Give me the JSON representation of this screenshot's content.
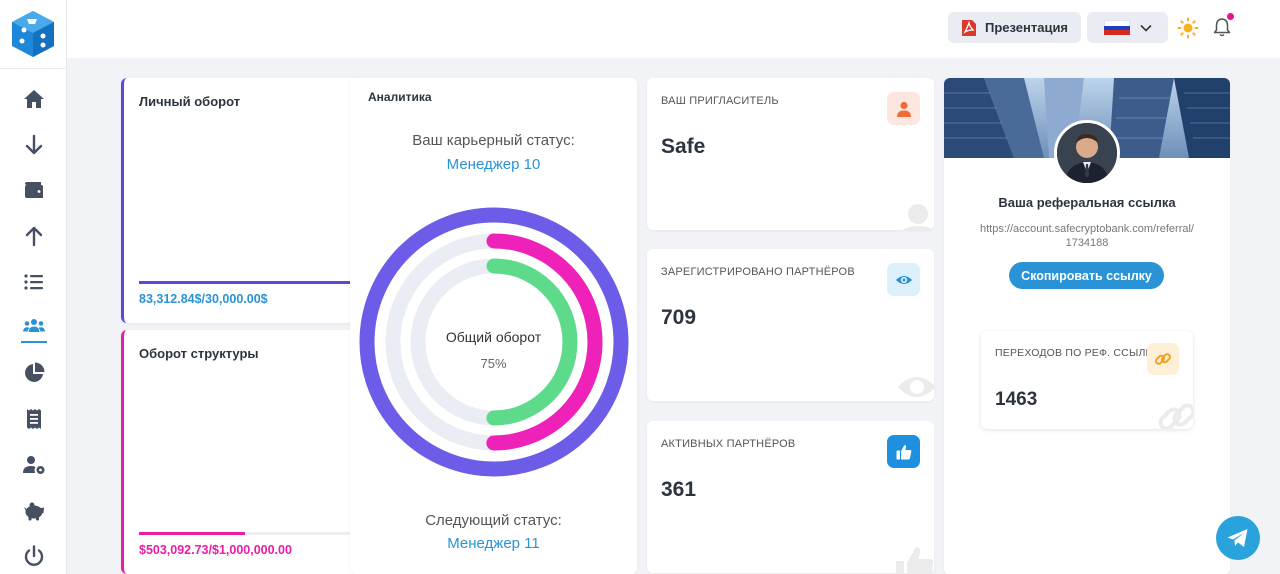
{
  "colors": {
    "primary": "#2a93d5",
    "personal_accent": "#5b48e0",
    "structure_accent": "#e91ea6",
    "donut_outer": "#6c5ce7",
    "donut_middle": "#ee22b8",
    "donut_inner": "#5edb8a"
  },
  "sidebar": {
    "items": [
      {
        "icon": "home-icon"
      },
      {
        "icon": "deposit-icon"
      },
      {
        "icon": "wallet-icon"
      },
      {
        "icon": "withdraw-icon"
      },
      {
        "icon": "list-icon"
      },
      {
        "icon": "team-icon",
        "active": true
      },
      {
        "icon": "pie-chart-icon"
      },
      {
        "icon": "receipt-icon"
      },
      {
        "icon": "user-settings-icon"
      },
      {
        "icon": "piggy-bank-icon"
      },
      {
        "icon": "power-icon"
      }
    ]
  },
  "header": {
    "presentation_label": "Презентация",
    "language": "ru"
  },
  "personal": {
    "title": "Личный оборот",
    "amount": "83,312.84$/30,000.00$",
    "progress": 1.0
  },
  "structure": {
    "title": "Оборот структуры",
    "amount": "$503,092.73/$1,000,000.00",
    "progress": 0.5
  },
  "analytics": {
    "title": "Аналитика",
    "career_label": "Ваш карьерный статус:",
    "career_value": "Менеджер 10",
    "center_label": "Общий оборот",
    "center_value": "75%",
    "rings": [
      {
        "name": "outer",
        "value": 1.0
      },
      {
        "name": "middle",
        "value": 0.5
      },
      {
        "name": "inner",
        "value": 0.5
      }
    ],
    "next_label": "Следующий статус:",
    "next_value": "Менеджер 11"
  },
  "stats": {
    "inviter": {
      "label": "ВАШ ПРИГЛАСИТЕЛЬ",
      "value": "Safe",
      "icon": "user-icon"
    },
    "registered": {
      "label": "ЗАРЕГИСТРИРОВАНО ПАРТНЁРОВ",
      "value": "709",
      "icon": "eye-icon"
    },
    "active": {
      "label": "АКТИВНЫХ ПАРТНЁРОВ",
      "value": "361",
      "icon": "thumbs-up-icon"
    }
  },
  "referral": {
    "title": "Ваша реферальная ссылка",
    "link": "https://account.safecryptobank.com/referral/1734188",
    "copy_label": "Скопировать ссылку",
    "clicks_label": "ПЕРЕХОДОВ ПО РЕФ. ССЫЛКЕ",
    "clicks_value": "1463"
  }
}
